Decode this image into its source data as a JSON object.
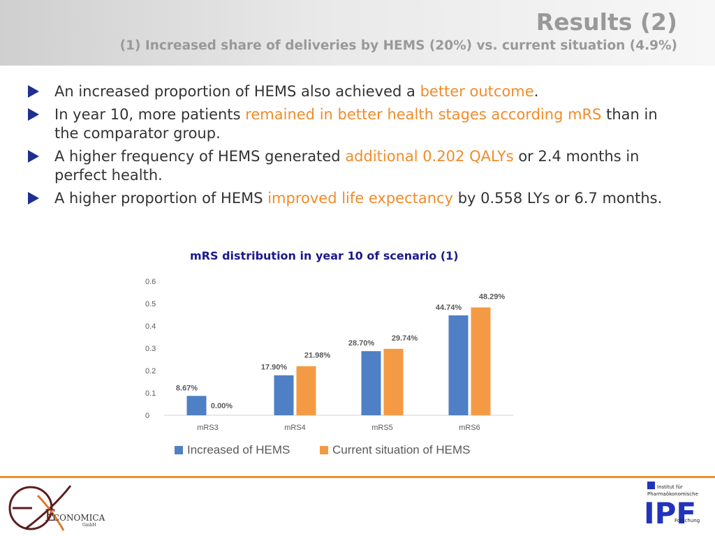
{
  "header": {
    "title": "Results (2)",
    "subtitle": "(1) Increased share of deliveries by HEMS (20%) vs. current situation (4.9%)"
  },
  "bullets": [
    {
      "before": "An increased proportion of HEMS also achieved a ",
      "highlight": "better outcome",
      "after": "."
    },
    {
      "before": "In year 10, more patients ",
      "highlight": "remained in better health stages according mRS",
      "after": " than in the comparator group."
    },
    {
      "before": "A higher frequency of HEMS generated ",
      "highlight": "additional 0.202 QALYs",
      "after": " or 2.4 months in perfect health."
    },
    {
      "before": "A higher proportion of HEMS ",
      "highlight": "improved life expectancy",
      "after": " by 0.558 LYs or 6.7 months."
    }
  ],
  "chart_data": {
    "type": "bar",
    "title": "mRS distribution in year 10 of scenario (1)",
    "categories": [
      "mRS3",
      "mRS4",
      "mRS5",
      "mRS6"
    ],
    "series": [
      {
        "name": "Increased of HEMS",
        "values": [
          0.0867,
          0.179,
          0.287,
          0.4474
        ],
        "labels": [
          "8.67%",
          "17.90%",
          "28.70%",
          "44.74%"
        ],
        "color": "#4f7fc4"
      },
      {
        "name": "Current situation of HEMS",
        "values": [
          0.0,
          0.2198,
          0.2974,
          0.4829
        ],
        "labels": [
          "0.00%",
          "21.98%",
          "29.74%",
          "48.29%"
        ],
        "color": "#f49a45"
      }
    ],
    "ylim": [
      0,
      0.6
    ],
    "yticks": [
      "0",
      "0.1",
      "0.2",
      "0.3",
      "0.4",
      "0.5",
      "0.6"
    ],
    "grid": false,
    "legend_position": "bottom"
  },
  "footer": {
    "left_logo_text": "ECONOMICA",
    "left_logo_sub": "GmbH",
    "right_logo_line1": "Institut für",
    "right_logo_line2": "Pharmaökonomische",
    "right_logo_letters": "IPF",
    "right_logo_line3": "Forschung",
    "accent_color": "#f08c2a"
  }
}
